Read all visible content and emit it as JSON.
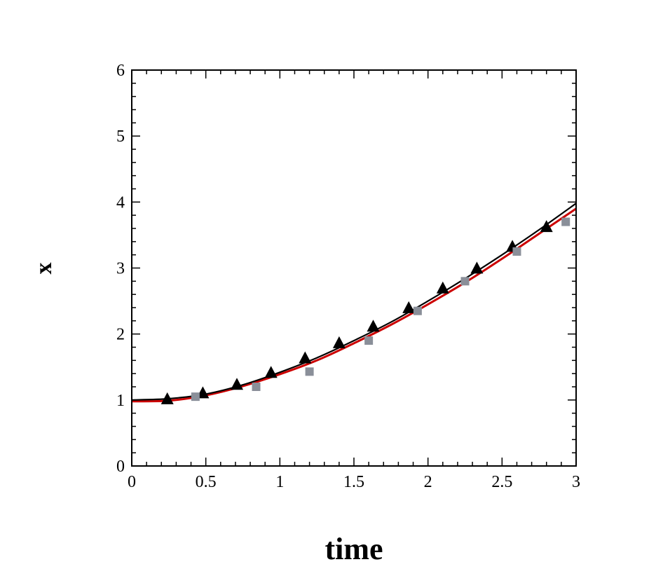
{
  "chart_data": {
    "type": "line",
    "title": "",
    "xlabel": "time",
    "ylabel": "x",
    "xlim": [
      0,
      3
    ],
    "ylim": [
      0,
      6
    ],
    "x_ticks": [
      "0",
      "0.5",
      "1",
      "1.5",
      "2",
      "2.5",
      "3"
    ],
    "y_ticks": [
      "0",
      "1",
      "2",
      "3",
      "4",
      "5",
      "6"
    ],
    "grid": false,
    "legend": "none",
    "series": [
      {
        "style": "line",
        "color": "#cc0000",
        "x": [
          0,
          0.25,
          0.5,
          0.75,
          1.0,
          1.25,
          1.5,
          1.75,
          2.0,
          2.25,
          2.5,
          2.75,
          3.0
        ],
        "y": [
          0.98,
          0.99,
          1.07,
          1.21,
          1.39,
          1.6,
          1.86,
          2.14,
          2.45,
          2.78,
          3.14,
          3.52,
          3.9
        ]
      },
      {
        "style": "line",
        "color": "#000000",
        "x": [
          0,
          0.25,
          0.5,
          0.75,
          1.0,
          1.25,
          1.5,
          1.75,
          2.0,
          2.25,
          2.5,
          2.75,
          3.0
        ],
        "y": [
          1.0,
          1.02,
          1.09,
          1.23,
          1.42,
          1.64,
          1.9,
          2.18,
          2.5,
          2.84,
          3.2,
          3.58,
          3.98
        ]
      },
      {
        "style": "triangle-markers",
        "color": "#000000",
        "x": [
          0.24,
          0.48,
          0.71,
          0.94,
          1.17,
          1.4,
          1.63,
          1.87,
          2.1,
          2.33,
          2.57,
          2.8
        ],
        "y": [
          1.01,
          1.1,
          1.23,
          1.41,
          1.63,
          1.86,
          2.11,
          2.39,
          2.69,
          2.99,
          3.32,
          3.62
        ]
      },
      {
        "style": "square-markers",
        "color": "#8a8f99",
        "x": [
          0.43,
          0.84,
          1.2,
          1.6,
          1.93,
          2.25,
          2.6,
          2.93
        ],
        "y": [
          1.05,
          1.2,
          1.43,
          1.9,
          2.35,
          2.8,
          3.25,
          3.7
        ]
      }
    ]
  }
}
